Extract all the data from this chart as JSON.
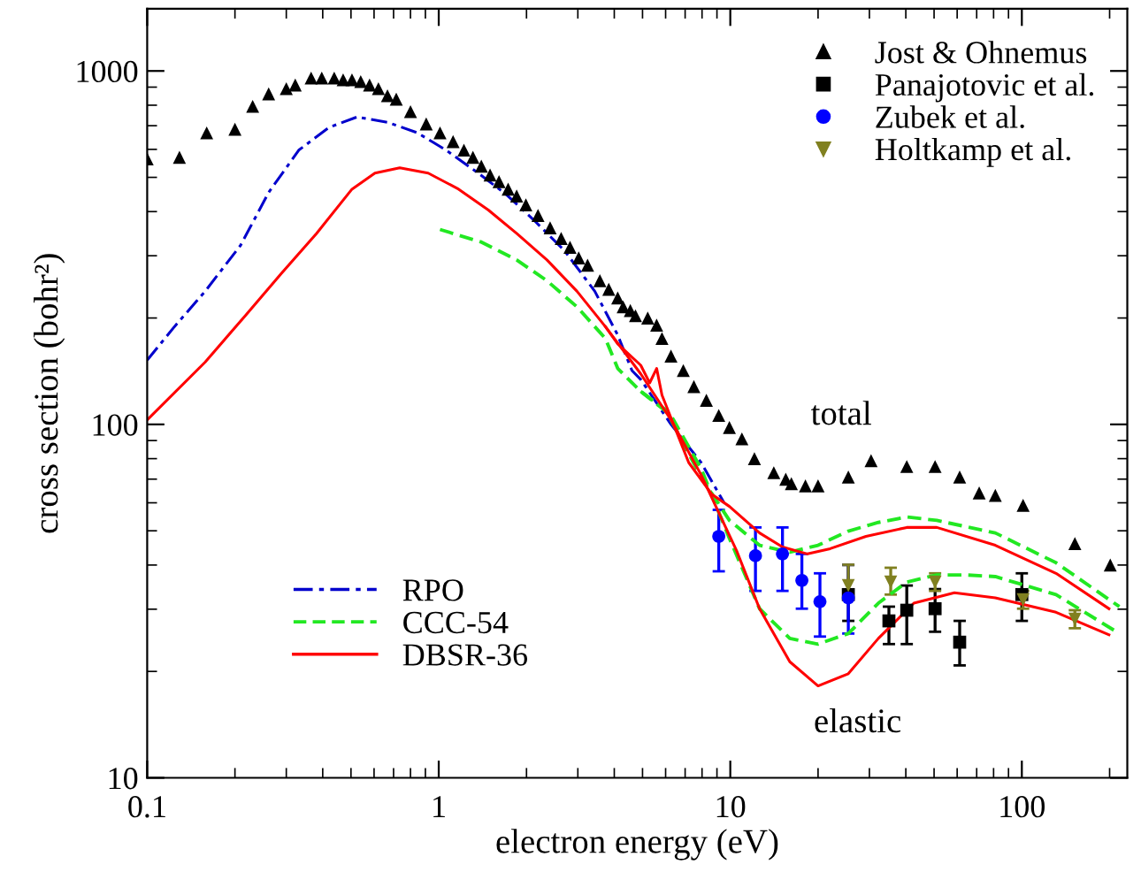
{
  "chart_data": {
    "type": "scatter",
    "xlabel": "electron energy (eV)",
    "ylabel": "cross section (bohr²)",
    "log": "xy",
    "xlim": [
      0.1,
      230
    ],
    "xticks": [
      0.1,
      1,
      10,
      100
    ],
    "ylim": [
      10,
      1500
    ],
    "yticks": [
      10,
      100,
      1000
    ],
    "grid": false,
    "legend": "top right",
    "annotations": [
      "total",
      "elastic"
    ],
    "series": [
      {
        "name": "Jost & Ohnemus",
        "marker": "triangle",
        "color": "#000000",
        "x": [
          0.1,
          0.129,
          0.16,
          0.2,
          0.23,
          0.261,
          0.3,
          0.322,
          0.365,
          0.397,
          0.438,
          0.47,
          0.504,
          0.54,
          0.579,
          0.621,
          0.667,
          0.715,
          0.8,
          0.906,
          1.01,
          1.12,
          1.22,
          1.31,
          1.4,
          1.5,
          1.61,
          1.73,
          1.85,
          1.99,
          2.19,
          2.41,
          2.63,
          2.82,
          3.02,
          3.24,
          3.57,
          3.83,
          4.11,
          4.29,
          4.54,
          4.73,
          5.21,
          5.59,
          5.83,
          6.26,
          6.9,
          7.5,
          8.28,
          9.13,
          9.93,
          10.96,
          12.1,
          14.1,
          15.5,
          16.2,
          18.1,
          20.0,
          25.4,
          30.4,
          40.3,
          50.4,
          61.2,
          71.4,
          81.1,
          101,
          152,
          201
        ],
        "values": [
          564,
          570,
          668,
          684,
          794,
          861,
          891,
          912,
          955,
          955,
          955,
          944,
          944,
          933,
          912,
          891,
          851,
          832,
          767,
          708,
          668,
          631,
          597,
          570,
          538,
          508,
          486,
          463,
          443,
          418,
          390,
          360,
          336,
          317,
          296,
          282,
          255,
          241,
          228,
          215,
          210,
          203,
          200,
          191,
          175,
          156,
          142,
          128,
          117,
          106,
          98,
          91,
          80,
          73,
          70,
          68,
          67,
          67,
          71,
          79,
          76,
          76,
          71,
          64,
          63,
          59,
          46,
          40
        ]
      },
      {
        "name": "Panajotovic et al.",
        "marker": "square",
        "color": "#000000",
        "x": [
          25.4,
          35.0,
          40.3,
          50.4,
          61.2,
          100
        ],
        "values": [
          33.0,
          27.8,
          29.8,
          30.1,
          24.2,
          33.0
        ],
        "errors": [
          [
            27.8,
            40.0
          ],
          [
            23.9,
            30.5
          ],
          [
            23.9,
            35.0
          ],
          [
            25.9,
            34.2
          ],
          [
            20.8,
            27.8
          ],
          [
            27.8,
            37.9
          ]
        ]
      },
      {
        "name": "Zubek et al.",
        "marker": "circle",
        "color": "#0000ff",
        "x": [
          9.13,
          12.2,
          15.1,
          17.6,
          20.3,
          25.4
        ],
        "values": [
          48.2,
          42.5,
          43.0,
          36.2,
          31.5,
          32.3
        ],
        "errors": [
          [
            38.4,
            57.3
          ],
          [
            33.8,
            51.1
          ],
          [
            33.8,
            51.1
          ],
          [
            30.1,
            43.0
          ],
          [
            25.1,
            37.9
          ],
          [
            25.6,
            40.1
          ]
        ]
      },
      {
        "name": "Holtkamp et al.",
        "marker": "triangle-down",
        "color": "#808020",
        "x": [
          25.4,
          35.5,
          50.4,
          101,
          152
        ],
        "values": [
          35.0,
          35.8,
          35.8,
          31.9,
          28.1
        ],
        "errors": [
          [
            32.3,
            40.1
          ],
          [
            33.0,
            39.3
          ],
          [
            33.8,
            37.9
          ],
          [
            30.1,
            33.8
          ],
          [
            26.5,
            29.8
          ]
        ]
      },
      {
        "name": "RPO",
        "type": "line",
        "line_style": "dashdot",
        "color": "#0000cc",
        "x": [
          0.1,
          0.124,
          0.158,
          0.209,
          0.261,
          0.331,
          0.42,
          0.525,
          0.667,
          0.846,
          1.06,
          1.34,
          1.7,
          2.13,
          2.7,
          3.43,
          4.11,
          4.6,
          4.93,
          6.26,
          7.94,
          9.52
        ],
        "values": [
          152,
          189,
          238,
          321,
          453,
          597,
          692,
          741,
          716,
          668,
          597,
          520,
          448,
          377,
          310,
          238,
          179,
          142,
          134,
          100,
          78,
          60
        ]
      },
      {
        "name": "CCC-54",
        "type": "line",
        "line_style": "dashed",
        "color": "#22e822",
        "x": [
          1.01,
          1.4,
          1.85,
          2.35,
          2.98,
          3.73,
          4.11,
          4.93,
          6.0,
          7.94,
          9.93,
          12.6,
          16.0,
          20.0,
          25.4,
          32.2,
          40.3,
          51.1,
          81.1,
          131,
          216
        ],
        "values": [
          356,
          328,
          292,
          255,
          215,
          175,
          144,
          124,
          110,
          71,
          53.5,
          45.5,
          43.5,
          45.5,
          49.9,
          52.8,
          54.7,
          53.5,
          49.3,
          40.6,
          30.5
        ]
      },
      {
        "type": "line",
        "line_style": "dashed",
        "color": "#22e822",
        "x": [
          4.93,
          6.26,
          7.94,
          9.93,
          12.6,
          16.0,
          20.0,
          25.4,
          32.2,
          40.3,
          51.1,
          64.8,
          81.1,
          131,
          216
        ],
        "values": [
          124,
          106,
          75,
          47.6,
          30.1,
          24.8,
          23.9,
          25.6,
          31.2,
          35.8,
          37.5,
          37.5,
          37.1,
          33.0,
          25.6
        ]
      },
      {
        "name": "DBSR-36",
        "type": "line",
        "line_style": "solid",
        "color": "#ff0000",
        "x": [
          0.1,
          0.158,
          0.217,
          0.288,
          0.381,
          0.504,
          0.604,
          0.735,
          0.92,
          1.17,
          1.48,
          1.85,
          2.35,
          2.98,
          3.73,
          4.11,
          4.93,
          5.29,
          5.59,
          5.83,
          7.2,
          8.63,
          9.93,
          12.6,
          15.1,
          18.4,
          22.0,
          29.2,
          40.3,
          51.1,
          81.1,
          131,
          199
        ],
        "values": [
          103,
          150,
          203,
          267,
          347,
          463,
          514,
          532,
          514,
          463,
          404,
          347,
          292,
          238,
          189,
          169,
          147,
          131,
          144,
          121,
          78,
          63.5,
          58.6,
          49.3,
          45.0,
          43.0,
          44.5,
          48.2,
          51.1,
          51.1,
          45.5,
          37.9,
          30.1
        ]
      },
      {
        "type": "line",
        "line_style": "solid",
        "color": "#ff0000",
        "x": [
          3.73,
          4.93,
          6.26,
          7.94,
          10.5,
          12.6,
          16.0,
          20.0,
          25.4,
          32.2,
          42.6,
          58.7,
          81.1,
          131,
          199
        ],
        "values": [
          189,
          139,
          103,
          72,
          44.0,
          30.1,
          21.3,
          18.2,
          19.7,
          24.8,
          31.2,
          33.4,
          32.3,
          29.4,
          25.4
        ]
      }
    ]
  }
}
